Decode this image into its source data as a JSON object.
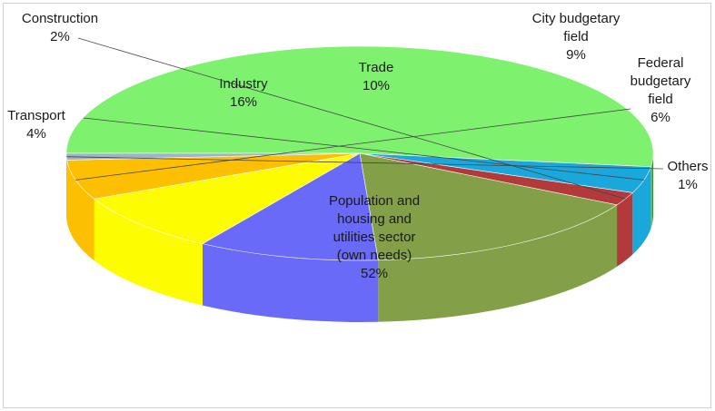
{
  "chart_data": {
    "type": "pie",
    "title": "",
    "slices": [
      {
        "label": "Population and housing and utilities sector (own needs)",
        "label_lines": [
          "Population and",
          "housing and",
          "utilities sector",
          "(own needs)"
        ],
        "value": 52,
        "value_label": "52%",
        "color": "#7ef26e"
      },
      {
        "label": "Transport",
        "label_lines": [
          "Transport"
        ],
        "value": 4,
        "value_label": "4%",
        "color": "#1aa7dc"
      },
      {
        "label": "Construction",
        "label_lines": [
          "Construction"
        ],
        "value": 2,
        "value_label": "2%",
        "color": "#b23a3a"
      },
      {
        "label": "Industry",
        "label_lines": [
          "Industry"
        ],
        "value": 16,
        "value_label": "16%",
        "color": "#83a049"
      },
      {
        "label": "Trade",
        "label_lines": [
          "Trade"
        ],
        "value": 10,
        "value_label": "10%",
        "color": "#6a6af8"
      },
      {
        "label": "City budgetary field",
        "label_lines": [
          "City budgetary",
          "field"
        ],
        "value": 9,
        "value_label": "9%",
        "color": "#fdfc01"
      },
      {
        "label": "Federal budgetary field",
        "label_lines": [
          "Federal",
          "budgetary",
          "field"
        ],
        "value": 6,
        "value_label": "6%",
        "color": "#fcbf01"
      },
      {
        "label": "Others",
        "label_lines": [
          "Others"
        ],
        "value": 1,
        "value_label": "1%",
        "color": "#9fb3cc"
      }
    ],
    "legend": "none",
    "style": "3d-perspective"
  }
}
